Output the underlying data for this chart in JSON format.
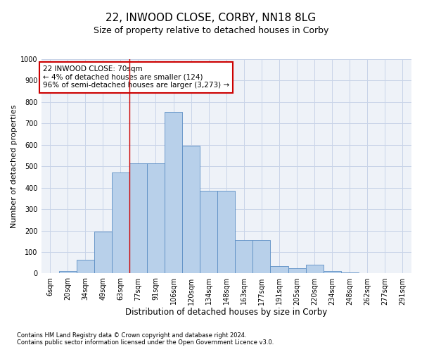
{
  "title": "22, INWOOD CLOSE, CORBY, NN18 8LG",
  "subtitle": "Size of property relative to detached houses in Corby",
  "xlabel": "Distribution of detached houses by size in Corby",
  "ylabel": "Number of detached properties",
  "footnote1": "Contains HM Land Registry data © Crown copyright and database right 2024.",
  "footnote2": "Contains public sector information licensed under the Open Government Licence v3.0.",
  "categories": [
    "6sqm",
    "20sqm",
    "34sqm",
    "49sqm",
    "63sqm",
    "77sqm",
    "91sqm",
    "106sqm",
    "120sqm",
    "134sqm",
    "148sqm",
    "163sqm",
    "177sqm",
    "191sqm",
    "205sqm",
    "220sqm",
    "234sqm",
    "248sqm",
    "262sqm",
    "277sqm",
    "291sqm"
  ],
  "values": [
    0,
    10,
    65,
    195,
    470,
    515,
    515,
    755,
    595,
    385,
    385,
    155,
    155,
    35,
    25,
    40,
    10,
    5,
    2,
    2,
    2
  ],
  "bar_color": "#b8d0ea",
  "bar_edge_color": "#5b8ec4",
  "ylim": [
    0,
    1000
  ],
  "yticks": [
    0,
    100,
    200,
    300,
    400,
    500,
    600,
    700,
    800,
    900,
    1000
  ],
  "annotation_box_text": "22 INWOOD CLOSE: 70sqm\n← 4% of detached houses are smaller (124)\n96% of semi-detached houses are larger (3,273) →",
  "annotation_box_color": "#ffffff",
  "annotation_box_edge_color": "#cc0000",
  "vline_x_index": 4,
  "vline_color": "#cc0000",
  "grid_color": "#c8d4e8",
  "background_color": "#eef2f8",
  "title_fontsize": 11,
  "subtitle_fontsize": 9,
  "xlabel_fontsize": 8.5,
  "ylabel_fontsize": 8,
  "tick_fontsize": 7,
  "annotation_fontsize": 7.5
}
